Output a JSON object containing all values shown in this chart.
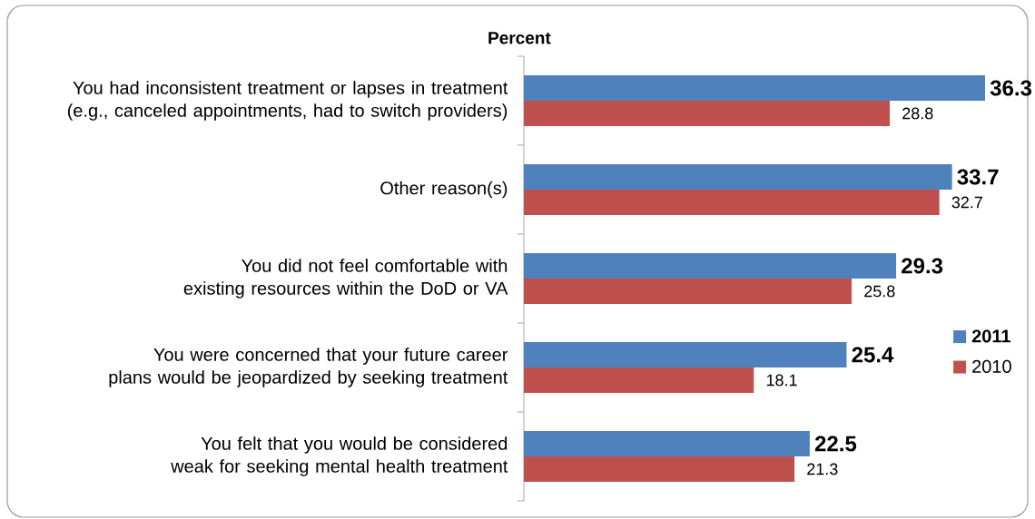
{
  "chart_data": {
    "type": "bar",
    "orientation": "horizontal",
    "title": "Percent",
    "categories": [
      "You had inconsistent treatment or lapses in treatment (e.g., canceled appointments, had to switch providers)",
      "Other reason(s)",
      "You did not feel comfortable with existing resources within the DoD or VA",
      "You were concerned that your future career plans would be jeopardized by seeking treatment",
      "You felt that you would be considered weak for seeking mental health treatment"
    ],
    "series": [
      {
        "name": "2011",
        "color": "#4f81bd",
        "values": [
          36.3,
          33.7,
          29.3,
          25.4,
          22.5
        ]
      },
      {
        "name": "2010",
        "color": "#c0504d",
        "values": [
          28.8,
          32.7,
          25.8,
          18.1,
          21.3
        ]
      }
    ],
    "data_labels": true,
    "legend": "right"
  }
}
